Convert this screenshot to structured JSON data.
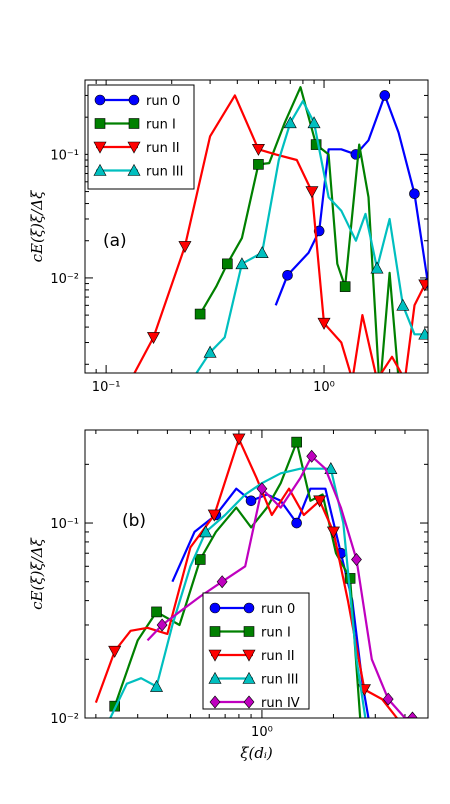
{
  "chart_data": [
    {
      "type": "line",
      "panel_label": "(a)",
      "xscale": "log",
      "yscale": "log",
      "xlim": [
        0.08,
        3.0
      ],
      "ylim": [
        0.0017,
        0.4
      ],
      "xticks": [
        {
          "value": 0.1,
          "label": "10⁻¹"
        },
        {
          "value": 1,
          "label": "10⁰"
        }
      ],
      "yticks": [
        {
          "value": 0.01,
          "label": "10⁻²"
        },
        {
          "value": 0.1,
          "label": "10⁻¹"
        }
      ],
      "ylabel": "cE(ξ)ξ/Δξ",
      "xlabel": "",
      "legend_position": "top-left",
      "series": [
        {
          "name": "run 0",
          "color": "#0000ff",
          "marker": "circle",
          "x": [
            0.6,
            0.68,
            0.85,
            0.95,
            1.05,
            1.2,
            1.4,
            1.6,
            1.9,
            2.2,
            2.6,
            3.0
          ],
          "y": [
            0.006,
            0.0105,
            0.016,
            0.024,
            0.11,
            0.11,
            0.1,
            0.13,
            0.3,
            0.15,
            0.048,
            0.009
          ],
          "markers": [
            false,
            true,
            false,
            true,
            false,
            false,
            true,
            false,
            true,
            false,
            true,
            true
          ]
        },
        {
          "name": "run I",
          "color": "#008000",
          "marker": "square",
          "x": [
            0.27,
            0.32,
            0.36,
            0.42,
            0.5,
            0.56,
            0.66,
            0.78,
            0.92,
            1.05,
            1.15,
            1.25,
            1.45,
            1.6,
            1.8,
            2.0,
            2.2,
            2.5,
            2.8
          ],
          "y": [
            0.0051,
            0.0085,
            0.013,
            0.021,
            0.083,
            0.085,
            0.18,
            0.35,
            0.12,
            0.1,
            0.013,
            0.0085,
            0.12,
            0.045,
            0.0012,
            0.011,
            0.0015,
            0.0016,
            0.0012
          ],
          "markers": [
            true,
            false,
            true,
            false,
            true,
            false,
            false,
            false,
            true,
            false,
            false,
            true,
            false,
            false,
            false,
            false,
            false,
            false,
            false
          ]
        },
        {
          "name": "run II",
          "color": "#ff0000",
          "marker": "triangle-down",
          "x": [
            0.13,
            0.165,
            0.23,
            0.3,
            0.39,
            0.5,
            0.6,
            0.75,
            0.88,
            1.0,
            1.2,
            1.35,
            1.5,
            1.75,
            2.05,
            2.35,
            2.6,
            2.9
          ],
          "y": [
            0.0015,
            0.0033,
            0.018,
            0.14,
            0.3,
            0.11,
            0.1,
            0.09,
            0.05,
            0.0043,
            0.003,
            0.0015,
            0.005,
            0.0015,
            0.0023,
            0.0015,
            0.006,
            0.0088
          ],
          "markers": [
            false,
            true,
            true,
            false,
            false,
            true,
            false,
            false,
            true,
            true,
            false,
            false,
            false,
            false,
            false,
            false,
            false,
            true
          ]
        },
        {
          "name": "run III",
          "color": "#00bfbf",
          "marker": "triangle-up",
          "x": [
            0.26,
            0.3,
            0.35,
            0.42,
            0.52,
            0.62,
            0.7,
            0.8,
            0.9,
            1.05,
            1.2,
            1.4,
            1.55,
            1.75,
            2.0,
            2.3,
            2.6,
            2.9
          ],
          "y": [
            0.0017,
            0.0025,
            0.0033,
            0.013,
            0.016,
            0.09,
            0.18,
            0.27,
            0.18,
            0.045,
            0.035,
            0.02,
            0.033,
            0.012,
            0.03,
            0.006,
            0.0035,
            0.0035
          ],
          "markers": [
            false,
            true,
            false,
            true,
            true,
            false,
            true,
            false,
            true,
            false,
            false,
            false,
            false,
            true,
            false,
            true,
            false,
            true
          ]
        }
      ]
    },
    {
      "type": "line",
      "panel_label": "(b)",
      "xscale": "log",
      "yscale": "log",
      "xlim": [
        0.18,
        5.0
      ],
      "ylim": [
        0.01,
        0.3
      ],
      "xticks": [
        {
          "value": 1,
          "label": "10⁰"
        }
      ],
      "yticks": [
        {
          "value": 0.01,
          "label": "10⁻²"
        },
        {
          "value": 0.1,
          "label": "10⁻¹"
        }
      ],
      "ylabel": "cE(ξ)ξ/Δξ",
      "xlabel": "ξ(dᵢ)",
      "legend_position": "bottom-center",
      "series": [
        {
          "name": "run 0",
          "color": "#0000ff",
          "marker": "circle",
          "x": [
            0.42,
            0.52,
            0.64,
            0.78,
            0.9,
            1.05,
            1.2,
            1.4,
            1.6,
            1.85,
            2.15,
            2.4,
            2.65,
            2.85
          ],
          "y": [
            0.05,
            0.09,
            0.11,
            0.15,
            0.13,
            0.14,
            0.13,
            0.1,
            0.15,
            0.15,
            0.07,
            0.04,
            0.015,
            0.009
          ],
          "markers": [
            false,
            false,
            true,
            false,
            true,
            false,
            false,
            true,
            false,
            false,
            true,
            false,
            false,
            false
          ]
        },
        {
          "name": "run I",
          "color": "#008000",
          "marker": "square",
          "x": [
            0.24,
            0.3,
            0.36,
            0.45,
            0.55,
            0.64,
            0.78,
            0.9,
            1.05,
            1.2,
            1.4,
            1.6,
            1.8,
            2.05,
            2.35,
            2.7
          ],
          "y": [
            0.0115,
            0.025,
            0.035,
            0.03,
            0.065,
            0.09,
            0.12,
            0.095,
            0.12,
            0.16,
            0.26,
            0.13,
            0.14,
            0.07,
            0.052,
            0.005
          ],
          "markers": [
            true,
            false,
            true,
            false,
            true,
            false,
            false,
            false,
            false,
            false,
            true,
            false,
            false,
            false,
            true,
            false
          ]
        },
        {
          "name": "run II",
          "color": "#ff0000",
          "marker": "triangle-down",
          "x": [
            0.2,
            0.24,
            0.28,
            0.33,
            0.4,
            0.5,
            0.63,
            0.8,
            0.95,
            1.1,
            1.3,
            1.5,
            1.75,
            2.0,
            2.3,
            2.7,
            3.2,
            3.7,
            4.2
          ],
          "y": [
            0.012,
            0.022,
            0.028,
            0.029,
            0.027,
            0.075,
            0.11,
            0.27,
            0.17,
            0.11,
            0.15,
            0.11,
            0.13,
            0.09,
            0.04,
            0.014,
            0.0125,
            0.01,
            0.008
          ],
          "markers": [
            false,
            true,
            false,
            false,
            false,
            false,
            true,
            true,
            false,
            false,
            false,
            false,
            true,
            true,
            false,
            true,
            false,
            false,
            false
          ]
        },
        {
          "name": "run III",
          "color": "#00bfbf",
          "marker": "triangle-up",
          "x": [
            0.2,
            0.23,
            0.27,
            0.31,
            0.36,
            0.42,
            0.5,
            0.58,
            0.7,
            0.85,
            1.0,
            1.2,
            1.45,
            1.7,
            1.95,
            2.2,
            2.5,
            2.8
          ],
          "y": [
            0.008,
            0.01,
            0.015,
            0.016,
            0.0145,
            0.03,
            0.06,
            0.09,
            0.11,
            0.14,
            0.16,
            0.18,
            0.19,
            0.19,
            0.19,
            0.1,
            0.02,
            0.008
          ],
          "markers": [
            false,
            false,
            false,
            false,
            true,
            false,
            false,
            true,
            false,
            false,
            false,
            false,
            false,
            false,
            true,
            false,
            false,
            false
          ]
        },
        {
          "name": "run IV",
          "color": "#bf00bf",
          "marker": "diamond",
          "x": [
            0.33,
            0.38,
            0.45,
            0.55,
            0.68,
            0.85,
            1.0,
            1.2,
            1.45,
            1.62,
            1.85,
            2.15,
            2.5,
            2.9,
            3.4,
            4.0,
            4.3
          ],
          "y": [
            0.025,
            0.03,
            0.035,
            0.042,
            0.05,
            0.06,
            0.15,
            0.12,
            0.17,
            0.22,
            0.19,
            0.12,
            0.065,
            0.02,
            0.0125,
            0.01,
            0.01
          ],
          "markers": [
            false,
            true,
            false,
            false,
            true,
            false,
            true,
            false,
            false,
            true,
            false,
            false,
            true,
            false,
            true,
            false,
            true
          ]
        }
      ]
    }
  ]
}
